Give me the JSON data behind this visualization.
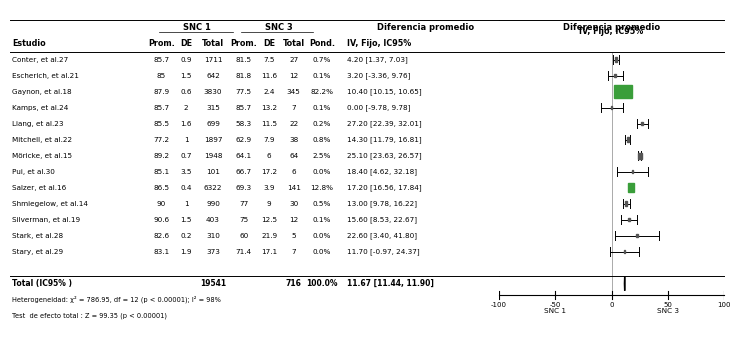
{
  "studies": [
    {
      "name": "Conter, et al.",
      "sup": "27",
      "snc1_prom": "85.7",
      "snc1_de": "0.9",
      "snc1_total": "1711",
      "snc3_prom": "81.5",
      "snc3_de": "7.5",
      "snc3_total": "27",
      "pond": "0.7%",
      "ci_str": "4.20 [1.37, 7.03]",
      "effect": 4.2,
      "ci_lo": 1.37,
      "ci_hi": 7.03,
      "weight": 0.7,
      "color": "#555555"
    },
    {
      "name": "Escherich, et al.",
      "sup": "21",
      "snc1_prom": "85",
      "snc1_de": "1.5",
      "snc1_total": "642",
      "snc3_prom": "81.8",
      "snc3_de": "11.6",
      "snc3_total": "12",
      "pond": "0.1%",
      "ci_str": "3.20 [-3.36, 9.76]",
      "effect": 3.2,
      "ci_lo": -3.36,
      "ci_hi": 9.76,
      "weight": 0.1,
      "color": "#555555"
    },
    {
      "name": "Gaynon, et al.",
      "sup": "18",
      "snc1_prom": "87.9",
      "snc1_de": "0.6",
      "snc1_total": "3830",
      "snc3_prom": "77.5",
      "snc3_de": "2.4",
      "snc3_total": "345",
      "pond": "82.2%",
      "ci_str": "10.40 [10.15, 10.65]",
      "effect": 10.4,
      "ci_lo": 10.15,
      "ci_hi": 10.65,
      "weight": 82.2,
      "color": "#3a9e3a"
    },
    {
      "name": "Kamps, et al.",
      "sup": "24",
      "snc1_prom": "85.7",
      "snc1_de": "2",
      "snc1_total": "315",
      "snc3_prom": "85.7",
      "snc3_de": "13.2",
      "snc3_total": "7",
      "pond": "0.1%",
      "ci_str": "0.00 [-9.78, 9.78]",
      "effect": 0.0,
      "ci_lo": -9.78,
      "ci_hi": 9.78,
      "weight": 0.1,
      "color": "#555555"
    },
    {
      "name": "Liang, et al.",
      "sup": "23",
      "snc1_prom": "85.5",
      "snc1_de": "1.6",
      "snc1_total": "699",
      "snc3_prom": "58.3",
      "snc3_de": "11.5",
      "snc3_total": "22",
      "pond": "0.2%",
      "ci_str": "27.20 [22.39, 32.01]",
      "effect": 27.2,
      "ci_lo": 22.39,
      "ci_hi": 32.01,
      "weight": 0.2,
      "color": "#555555"
    },
    {
      "name": "Mitchell, et al.",
      "sup": "22",
      "snc1_prom": "77.2",
      "snc1_de": "1",
      "snc1_total": "1897",
      "snc3_prom": "62.9",
      "snc3_de": "7.9",
      "snc3_total": "38",
      "pond": "0.8%",
      "ci_str": "14.30 [11.79, 16.81]",
      "effect": 14.3,
      "ci_lo": 11.79,
      "ci_hi": 16.81,
      "weight": 0.8,
      "color": "#555555"
    },
    {
      "name": "Möricke, et al.",
      "sup": "15",
      "snc1_prom": "89.2",
      "snc1_de": "0.7",
      "snc1_total": "1948",
      "snc3_prom": "64.1",
      "snc3_de": "6",
      "snc3_total": "64",
      "pond": "2.5%",
      "ci_str": "25.10 [23.63, 26.57]",
      "effect": 25.1,
      "ci_lo": 23.63,
      "ci_hi": 26.57,
      "weight": 2.5,
      "color": "#555555"
    },
    {
      "name": "Pui, et al.",
      "sup": "30",
      "snc1_prom": "85.1",
      "snc1_de": "3.5",
      "snc1_total": "101",
      "snc3_prom": "66.7",
      "snc3_de": "17.2",
      "snc3_total": "6",
      "pond": "0.0%",
      "ci_str": "18.40 [4.62, 32.18]",
      "effect": 18.4,
      "ci_lo": 4.62,
      "ci_hi": 32.18,
      "weight": 0.05,
      "color": "#555555"
    },
    {
      "name": "Salzer, et al.",
      "sup": "16",
      "snc1_prom": "86.5",
      "snc1_de": "0.4",
      "snc1_total": "6322",
      "snc3_prom": "69.3",
      "snc3_de": "3.9",
      "snc3_total": "141",
      "pond": "12.8%",
      "ci_str": "17.20 [16.56, 17.84]",
      "effect": 17.2,
      "ci_lo": 16.56,
      "ci_hi": 17.84,
      "weight": 12.8,
      "color": "#3a9e3a"
    },
    {
      "name": "Shmiegelow, et al.",
      "sup": "14",
      "snc1_prom": "90",
      "snc1_de": "1",
      "snc1_total": "990",
      "snc3_prom": "77",
      "snc3_de": "9",
      "snc3_total": "30",
      "pond": "0.5%",
      "ci_str": "13.00 [9.78, 16.22]",
      "effect": 13.0,
      "ci_lo": 9.78,
      "ci_hi": 16.22,
      "weight": 0.5,
      "color": "#555555"
    },
    {
      "name": "Silverman, et al.",
      "sup": "19",
      "snc1_prom": "90.6",
      "snc1_de": "1.5",
      "snc1_total": "403",
      "snc3_prom": "75",
      "snc3_de": "12.5",
      "snc3_total": "12",
      "pond": "0.1%",
      "ci_str": "15.60 [8.53, 22.67]",
      "effect": 15.6,
      "ci_lo": 8.53,
      "ci_hi": 22.67,
      "weight": 0.1,
      "color": "#555555"
    },
    {
      "name": "Stark, et al.",
      "sup": "28",
      "snc1_prom": "82.6",
      "snc1_de": "0.2",
      "snc1_total": "310",
      "snc3_prom": "60",
      "snc3_de": "21.9",
      "snc3_total": "5",
      "pond": "0.0%",
      "ci_str": "22.60 [3.40, 41.80]",
      "effect": 22.6,
      "ci_lo": 3.4,
      "ci_hi": 41.8,
      "weight": 0.05,
      "color": "#555555"
    },
    {
      "name": "Stary, et al.",
      "sup": "29",
      "snc1_prom": "83.1",
      "snc1_de": "1.9",
      "snc1_total": "373",
      "snc3_prom": "71.4",
      "snc3_de": "17.1",
      "snc3_total": "7",
      "pond": "0.0%",
      "ci_str": "11.70 [-0.97, 24.37]",
      "effect": 11.7,
      "ci_lo": -0.97,
      "ci_hi": 24.37,
      "weight": 0.05,
      "color": "#555555"
    }
  ],
  "total": {
    "snc1_total": "19541",
    "snc3_total": "716",
    "pond": "100.0%",
    "ci_str": "11.67 [11.44, 11.90]",
    "effect": 11.67,
    "ci_lo": 11.44,
    "ci_hi": 11.9
  },
  "heterogeneity": "Heterogeneidad: χ² = 786.95, df = 12 (p < 0.00001); I² = 98%",
  "test_effect": "Test  de efecto total : Z = 99.35 (p < 0.00001)",
  "xlim": [
    -100,
    100
  ],
  "xticks": [
    -100,
    -50,
    0,
    50,
    100
  ],
  "xlabel_left": "SNC 1",
  "xlabel_right": "SNC 3"
}
